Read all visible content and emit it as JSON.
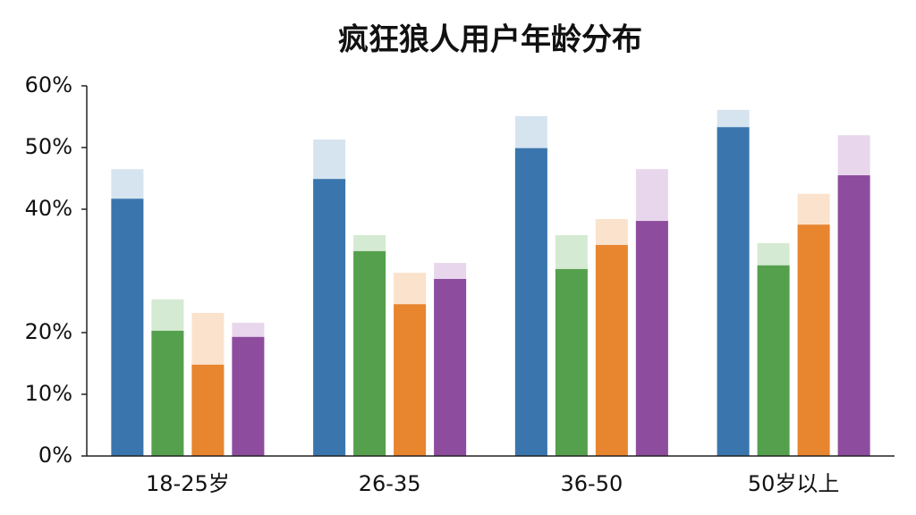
{
  "chart_data": {
    "type": "bar",
    "title": "疯狂狼人用户年龄分布",
    "categories": [
      "18-25岁",
      "26-35",
      "36-50",
      "50岁以上"
    ],
    "series": [
      {
        "color": "#3a76ad",
        "upper_color": "#d6e4f0",
        "values": [
          41.7,
          44.9,
          49.9,
          53.3
        ],
        "upper_values": [
          46.5,
          51.3,
          55.1,
          56.1
        ]
      },
      {
        "color": "#55a04d",
        "upper_color": "#d5ead2",
        "values": [
          20.3,
          33.2,
          30.3,
          30.9
        ],
        "upper_values": [
          25.4,
          35.8,
          35.8,
          34.5
        ]
      },
      {
        "color": "#e8852f",
        "upper_color": "#fbe2cc",
        "values": [
          14.8,
          24.6,
          34.2,
          37.5
        ],
        "upper_values": [
          23.2,
          29.7,
          38.4,
          42.5
        ]
      },
      {
        "color": "#8e4c9e",
        "upper_color": "#e8d7ec",
        "values": [
          19.3,
          28.7,
          38.1,
          45.5
        ],
        "upper_values": [
          21.6,
          31.3,
          46.5,
          52.0
        ]
      }
    ],
    "ylim": [
      0,
      60
    ],
    "yticks": [
      {
        "value": 0,
        "label": "0%"
      },
      {
        "value": 10,
        "label": "10%"
      },
      {
        "value": 20,
        "label": "20%"
      },
      {
        "value": 40,
        "label": "40%"
      },
      {
        "value": 50,
        "label": "50%"
      },
      {
        "value": 60,
        "label": "60%"
      }
    ]
  }
}
